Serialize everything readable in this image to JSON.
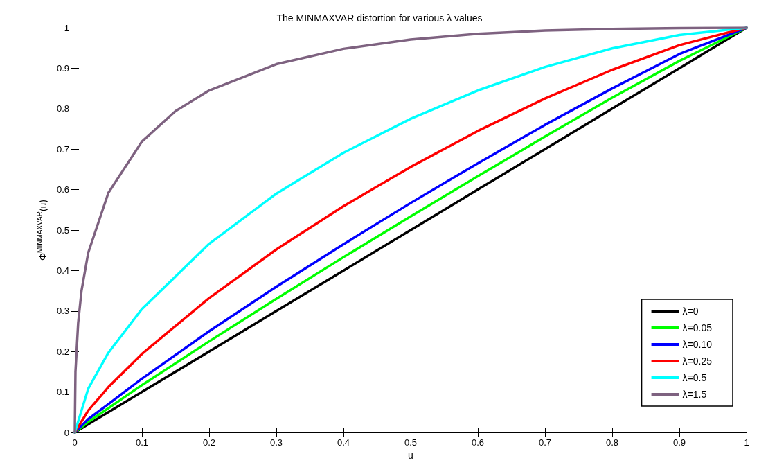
{
  "chart_data": {
    "type": "line",
    "title": "The MINMAXVAR distortion for various λ values",
    "xlabel": "u",
    "ylabel": "Φ$^{MINMAXVAR}$(u)",
    "x": [
      0,
      0.02,
      0.05,
      0.1,
      0.2,
      0.3,
      0.4,
      0.5,
      0.6,
      0.7,
      0.8,
      0.9,
      1
    ],
    "series": [
      {
        "name": "λ=0",
        "color": "#000000",
        "values": [
          0,
          0.02,
          0.05,
          0.1,
          0.2,
          0.3,
          0.4,
          0.5,
          0.6,
          0.7,
          0.8,
          0.9,
          1
        ]
      },
      {
        "name": "λ=0.05",
        "color": "#00ff00",
        "values": [
          0,
          0.026,
          0.06,
          0.117,
          0.225,
          0.33,
          0.433,
          0.534,
          0.633,
          0.731,
          0.827,
          0.918,
          1
        ]
      },
      {
        "name": "λ=0.10",
        "color": "#0000ff",
        "values": [
          0,
          0.033,
          0.07,
          0.133,
          0.25,
          0.36,
          0.465,
          0.567,
          0.665,
          0.76,
          0.85,
          0.935,
          1
        ]
      },
      {
        "name": "λ=0.25",
        "color": "#ff0000",
        "values": [
          0,
          0.054,
          0.112,
          0.194,
          0.332,
          0.452,
          0.559,
          0.656,
          0.745,
          0.825,
          0.896,
          0.957,
          1
        ]
      },
      {
        "name": "λ=0.5",
        "color": "#00ffff",
        "values": [
          0,
          0.108,
          0.197,
          0.305,
          0.466,
          0.59,
          0.691,
          0.775,
          0.845,
          0.903,
          0.949,
          0.982,
          1
        ]
      },
      {
        "name": "λ=1.5",
        "color": "#7e6280",
        "x": [
          0,
          0.001,
          0.005,
          0.01,
          0.02,
          0.05,
          0.1,
          0.15,
          0.2,
          0.3,
          0.4,
          0.5,
          0.6,
          0.7,
          0.8,
          0.9,
          1
        ],
        "values": [
          0,
          0.15,
          0.27,
          0.35,
          0.444,
          0.592,
          0.719,
          0.794,
          0.845,
          0.91,
          0.948,
          0.971,
          0.985,
          0.993,
          0.997,
          0.999,
          1
        ]
      }
    ],
    "xlim": [
      0,
      1
    ],
    "ylim": [
      0,
      1
    ],
    "xticks": [
      0,
      0.1,
      0.2,
      0.3,
      0.4,
      0.5,
      0.6,
      0.7,
      0.8,
      0.9,
      1
    ],
    "yticks": [
      0,
      0.1,
      0.2,
      0.3,
      0.4,
      0.5,
      0.6,
      0.7,
      0.8,
      0.9,
      1
    ],
    "grid": false,
    "legend": "bottom right",
    "marker": "none",
    "line_style": "solid"
  }
}
